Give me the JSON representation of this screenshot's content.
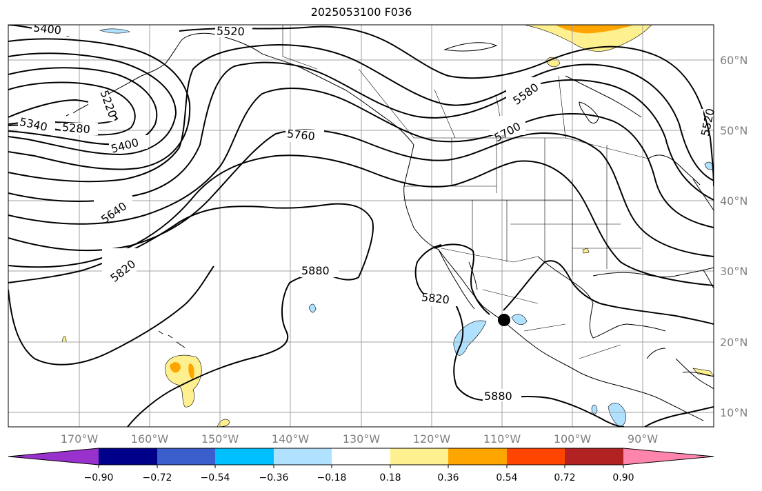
{
  "title": "2025053100 F036",
  "lat_labels": [
    "60°N",
    "50°N",
    "40°N",
    "30°N",
    "20°N",
    "10°N"
  ],
  "lon_labels": [
    "170°W",
    "160°W",
    "150°W",
    "140°W",
    "130°W",
    "120°W",
    "110°W",
    "100°W",
    "90°W"
  ],
  "contour_labels": [
    "5400",
    "5520",
    "5220",
    "5340",
    "5280",
    "5400",
    "5760",
    "5640",
    "5820",
    "5880",
    "5820",
    "5880",
    "5580",
    "5700",
    "5520"
  ],
  "colorbar": {
    "colors": [
      "#9932cc",
      "#00008b",
      "#3a5fcd",
      "#00bfff",
      "#b0e2ff",
      "#ffffff",
      "#fff08f",
      "#ffa500",
      "#ff4500",
      "#b22222",
      "#ff85ad"
    ],
    "tick_labels": [
      "−0.90",
      "−0.72",
      "−0.54",
      "−0.36",
      "−0.18",
      "0.18",
      "0.36",
      "0.54",
      "0.72",
      "0.90"
    ]
  },
  "colors": {
    "contour": "#000000",
    "grid": "#a0a0a0",
    "coast": "#000000",
    "tick_label": "#808080"
  }
}
